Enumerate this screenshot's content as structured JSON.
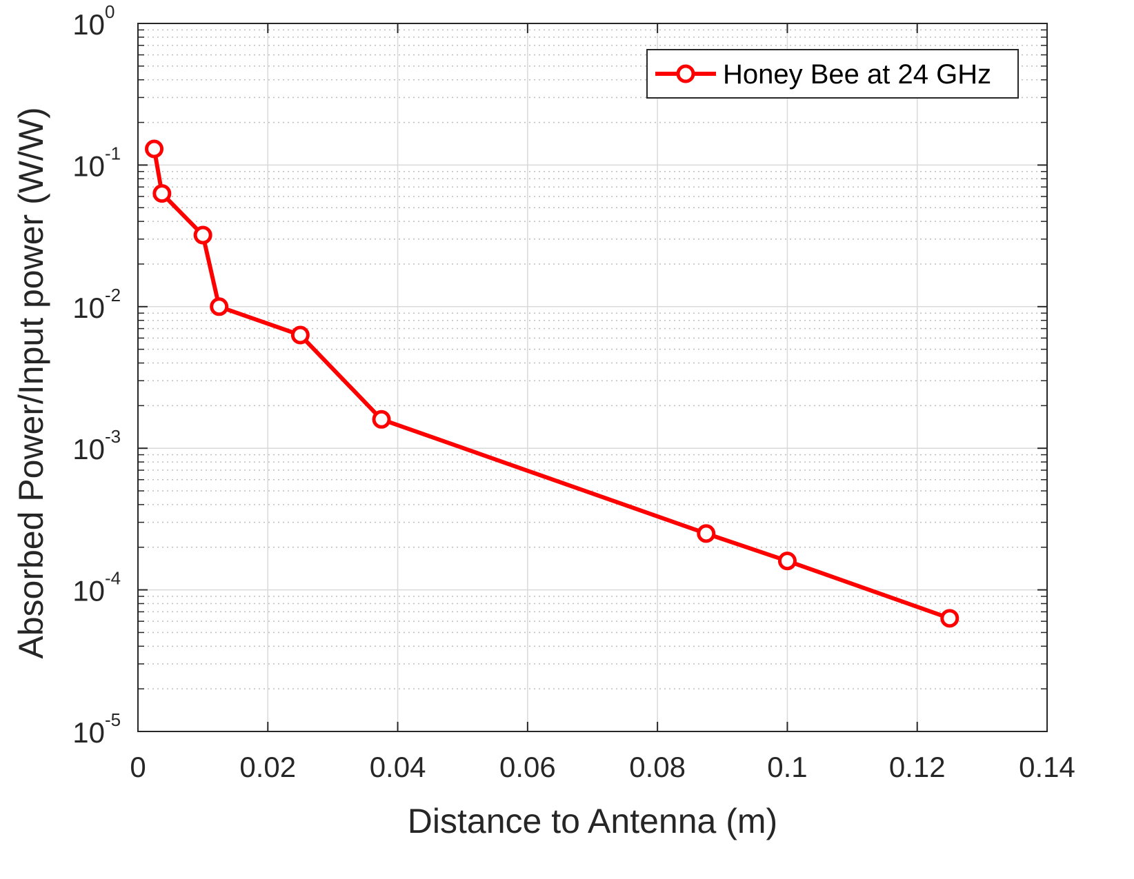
{
  "chart_data": {
    "type": "line",
    "xlabel": "Distance to Antenna (m)",
    "ylabel": "Absorbed Power/Input power (W/W)",
    "xlim": [
      0,
      0.14
    ],
    "ylim": [
      1e-05,
      1
    ],
    "yscale": "log",
    "grid": true,
    "minor_grid": true,
    "legend_position": "top-right",
    "x_ticks": [
      "0",
      "0.02",
      "0.04",
      "0.06",
      "0.08",
      "0.1",
      "0.12",
      "0.14"
    ],
    "y_ticks": [
      {
        "base": "10",
        "exp": "-5"
      },
      {
        "base": "10",
        "exp": "-4"
      },
      {
        "base": "10",
        "exp": "-3"
      },
      {
        "base": "10",
        "exp": "-2"
      },
      {
        "base": "10",
        "exp": "-1"
      },
      {
        "base": "10",
        "exp": "0"
      }
    ],
    "series": [
      {
        "name": "Honey Bee at 24 GHz",
        "color": "#ff0000",
        "marker": "circle",
        "x": [
          0.0025,
          0.0037,
          0.01,
          0.0125,
          0.025,
          0.0375,
          0.0875,
          0.1,
          0.125
        ],
        "y": [
          0.13,
          0.063,
          0.032,
          0.01,
          0.0063,
          0.0016,
          0.00025,
          0.00016,
          6.3e-05
        ]
      }
    ]
  }
}
